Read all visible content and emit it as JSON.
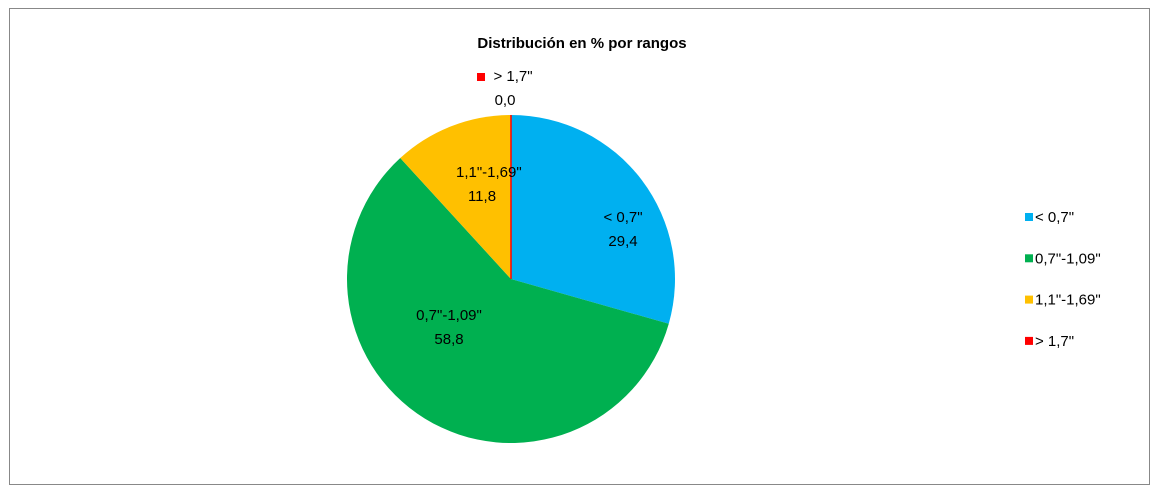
{
  "chart_data": {
    "type": "pie",
    "title": "Distribución en % por rangos",
    "categories": [
      "< 0,7\"",
      "0,7\"-1,09\"",
      "1,1\"-1,69\"",
      "> 1,7\""
    ],
    "values": [
      29.4,
      58.8,
      11.8,
      0.0
    ],
    "value_labels": [
      "29,4",
      "58,8",
      "11,8",
      "0,0"
    ],
    "colors": [
      "#00b0f0",
      "#00b050",
      "#ffc000",
      "#ff0000"
    ],
    "legend": "right"
  }
}
